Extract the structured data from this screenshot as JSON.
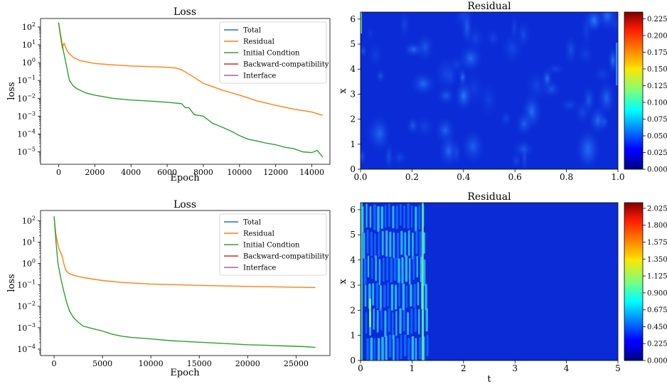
{
  "colors": {
    "total": "#1f77b4",
    "residual": "#ff7f0e",
    "initial": "#2ca02c",
    "backward": "#d62728",
    "interface": "#9467bd"
  },
  "chart_data": [
    {
      "type": "line",
      "title": "Loss",
      "xlabel": "Epoch",
      "ylabel": "loss",
      "yscale": "log",
      "xlim": [
        -1000,
        15000
      ],
      "ylim": [
        2e-06,
        300
      ],
      "xticks": [
        0,
        2000,
        4000,
        6000,
        8000,
        10000,
        12000,
        14000
      ],
      "yticks": [
        {
          "value": 100,
          "base": "10",
          "exp": "2"
        },
        {
          "value": 10,
          "base": "10",
          "exp": "1"
        },
        {
          "value": 1,
          "base": "10",
          "exp": "0"
        },
        {
          "value": 0.1,
          "base": "10",
          "exp": "−1"
        },
        {
          "value": 0.01,
          "base": "10",
          "exp": "−2"
        },
        {
          "value": 0.001,
          "base": "10",
          "exp": "−3"
        },
        {
          "value": 0.0001,
          "base": "10",
          "exp": "−4"
        },
        {
          "value": 1e-05,
          "base": "10",
          "exp": "−5"
        }
      ],
      "legend": "top-right",
      "series": [
        {
          "name": "Total",
          "color_key": "total",
          "points": [
            [
              0,
              180
            ]
          ]
        },
        {
          "name": "Residual",
          "color_key": "residual",
          "points": [
            [
              0,
              160
            ],
            [
              100,
              30
            ],
            [
              200,
              7
            ],
            [
              300,
              12
            ],
            [
              500,
              4
            ],
            [
              800,
              2
            ],
            [
              1200,
              1.3
            ],
            [
              2000,
              0.9
            ],
            [
              3000,
              0.75
            ],
            [
              4000,
              0.65
            ],
            [
              5000,
              0.6
            ],
            [
              6000,
              0.55
            ],
            [
              6500,
              0.5
            ],
            [
              6800,
              0.4
            ],
            [
              7000,
              0.3
            ],
            [
              7500,
              0.15
            ],
            [
              8000,
              0.07
            ],
            [
              9000,
              0.03
            ],
            [
              10000,
              0.015
            ],
            [
              11000,
              0.007
            ],
            [
              12000,
              0.004
            ],
            [
              13000,
              0.0025
            ],
            [
              14000,
              0.0017
            ],
            [
              14600,
              0.0011
            ]
          ]
        },
        {
          "name": "Initial Condtion",
          "color_key": "initial",
          "points": [
            [
              0,
              180
            ],
            [
              100,
              40
            ],
            [
              200,
              10
            ],
            [
              300,
              3
            ],
            [
              400,
              1
            ],
            [
              500,
              0.3
            ],
            [
              600,
              0.1
            ],
            [
              800,
              0.05
            ],
            [
              1000,
              0.035
            ],
            [
              1500,
              0.02
            ],
            [
              2000,
              0.015
            ],
            [
              3000,
              0.01
            ],
            [
              4000,
              0.008
            ],
            [
              5000,
              0.007
            ],
            [
              6000,
              0.006
            ],
            [
              6800,
              0.005
            ],
            [
              7000,
              0.003
            ],
            [
              7200,
              0.003
            ],
            [
              7500,
              0.0012
            ],
            [
              8000,
              0.001
            ],
            [
              8500,
              0.0004
            ],
            [
              9000,
              0.00025
            ],
            [
              9500,
              0.00015
            ],
            [
              10000,
              8e-05
            ],
            [
              10500,
              5e-05
            ],
            [
              11000,
              4e-05
            ],
            [
              11500,
              3e-05
            ],
            [
              12000,
              2.5e-05
            ],
            [
              12500,
              1.8e-05
            ],
            [
              13000,
              1.5e-05
            ],
            [
              13500,
              1e-05
            ],
            [
              14000,
              9e-06
            ],
            [
              14300,
              1.2e-05
            ],
            [
              14600,
              5e-06
            ]
          ]
        },
        {
          "name": "Backward-compatibility",
          "color_key": "backward",
          "points": []
        },
        {
          "name": "Interface",
          "color_key": "interface",
          "points": []
        }
      ]
    },
    {
      "type": "heatmap",
      "title": "Residual",
      "xlabel": "",
      "ylabel": "x",
      "xlim": [
        0,
        1
      ],
      "ylim": [
        0,
        6.28
      ],
      "xticks": [
        "0.0",
        "0.2",
        "0.4",
        "0.6",
        "0.8",
        "1.0"
      ],
      "yticks": [
        "0",
        "1",
        "2",
        "3",
        "4",
        "5",
        "6"
      ],
      "colormap": "jet",
      "colorbar_ticks": [
        "0.000",
        "0.025",
        "0.050",
        "0.075",
        "0.100",
        "0.125",
        "0.150",
        "0.175",
        "0.200",
        "0.225"
      ],
      "vmax": 0.235
    },
    {
      "type": "line",
      "title": "Loss",
      "xlabel": "Epoch",
      "ylabel": "loss",
      "yscale": "log",
      "xlim": [
        -1400,
        28500
      ],
      "ylim": [
        5e-05,
        300
      ],
      "xticks": [
        0,
        5000,
        10000,
        15000,
        20000,
        25000
      ],
      "yticks": [
        {
          "value": 100,
          "base": "10",
          "exp": "2"
        },
        {
          "value": 10,
          "base": "10",
          "exp": "1"
        },
        {
          "value": 1,
          "base": "10",
          "exp": "0"
        },
        {
          "value": 0.1,
          "base": "10",
          "exp": "−1"
        },
        {
          "value": 0.01,
          "base": "10",
          "exp": "−2"
        },
        {
          "value": 0.001,
          "base": "10",
          "exp": "−3"
        },
        {
          "value": 0.0001,
          "base": "10",
          "exp": "−4"
        }
      ],
      "legend": "top-right",
      "series": [
        {
          "name": "Total",
          "color_key": "total",
          "points": [
            [
              0,
              160
            ]
          ]
        },
        {
          "name": "Residual",
          "color_key": "residual",
          "points": [
            [
              0,
              150
            ],
            [
              200,
              20
            ],
            [
              500,
              5
            ],
            [
              800,
              2.5
            ],
            [
              1000,
              1
            ],
            [
              1200,
              0.5
            ],
            [
              1500,
              0.35
            ],
            [
              2000,
              0.28
            ],
            [
              3000,
              0.22
            ],
            [
              5000,
              0.16
            ],
            [
              7000,
              0.13
            ],
            [
              10000,
              0.11
            ],
            [
              15000,
              0.095
            ],
            [
              20000,
              0.085
            ],
            [
              25000,
              0.078
            ],
            [
              27000,
              0.075
            ]
          ]
        },
        {
          "name": "Initial Condtion",
          "color_key": "initial",
          "points": [
            [
              0,
              160
            ],
            [
              200,
              10
            ],
            [
              400,
              1
            ],
            [
              700,
              0.2
            ],
            [
              1000,
              0.05
            ],
            [
              1300,
              0.015
            ],
            [
              1600,
              0.006
            ],
            [
              2000,
              0.003
            ],
            [
              2500,
              0.0018
            ],
            [
              3000,
              0.0012
            ],
            [
              4000,
              0.0009
            ],
            [
              5000,
              0.0007
            ],
            [
              6000,
              0.0005
            ],
            [
              7000,
              0.0004
            ],
            [
              8000,
              0.00035
            ],
            [
              10000,
              0.0003
            ],
            [
              12000,
              0.00025
            ],
            [
              14000,
              0.00022
            ],
            [
              16000,
              0.0002
            ],
            [
              18000,
              0.00018
            ],
            [
              20000,
              0.00016
            ],
            [
              22000,
              0.00015
            ],
            [
              24000,
              0.00014
            ],
            [
              26000,
              0.00013
            ],
            [
              27000,
              0.00012
            ]
          ]
        },
        {
          "name": "Backward-compatibility",
          "color_key": "backward",
          "points": []
        },
        {
          "name": "Interface",
          "color_key": "interface",
          "points": []
        }
      ]
    },
    {
      "type": "heatmap",
      "title": "Residual",
      "xlabel": "t",
      "ylabel": "x",
      "xlim": [
        0,
        5
      ],
      "ylim": [
        0,
        6.28
      ],
      "xticks": [
        "0",
        "1",
        "2",
        "3",
        "4",
        "5"
      ],
      "yticks": [
        "0",
        "1",
        "2",
        "3",
        "4",
        "5",
        "6"
      ],
      "colormap": "jet",
      "colorbar_ticks": [
        "0.000",
        "0.225",
        "0.450",
        "0.675",
        "0.900",
        "1.125",
        "1.350",
        "1.575",
        "1.800",
        "2.025"
      ],
      "vmax": 2.1
    }
  ]
}
